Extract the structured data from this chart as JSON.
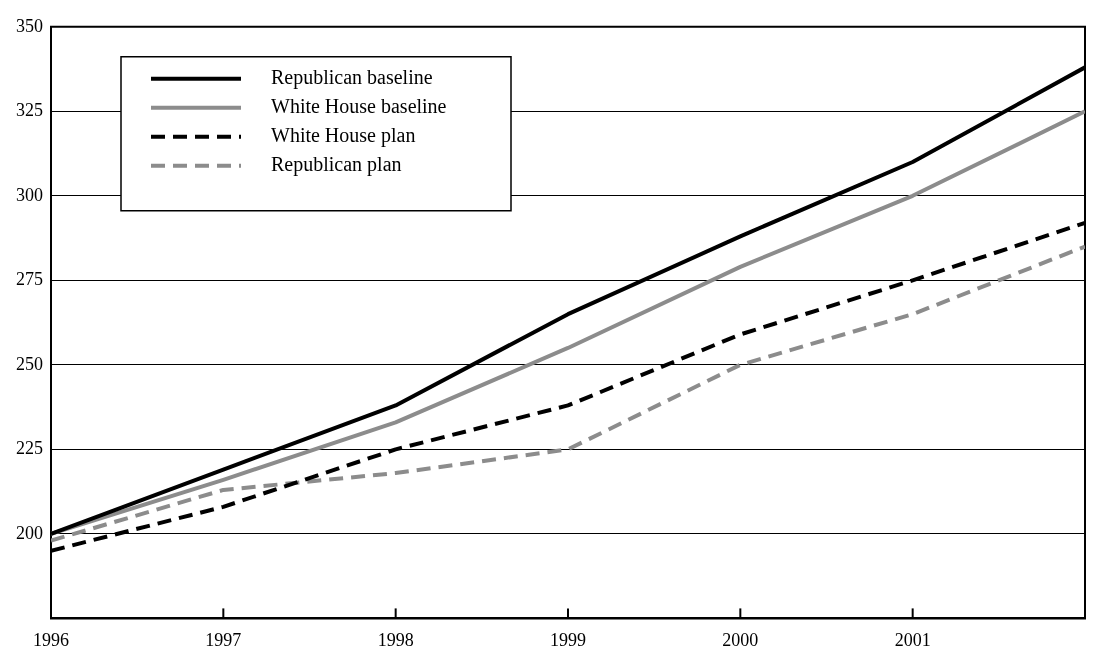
{
  "chart_data": {
    "type": "line",
    "x": [
      1996,
      1997,
      1998,
      1999,
      2000,
      2001,
      2002
    ],
    "series": [
      {
        "name": "Republican baseline",
        "color": "#000000",
        "line_style": "solid",
        "values": [
          200,
          219,
          238,
          265,
          288,
          310,
          338
        ]
      },
      {
        "name": "White House baseline",
        "color": "#8c8c8c",
        "line_style": "solid",
        "values": [
          200,
          216,
          233,
          255,
          279,
          300,
          325
        ]
      },
      {
        "name": "White House plan",
        "color": "#000000",
        "line_style": "dashed",
        "values": [
          195,
          208,
          225,
          238,
          259,
          275,
          292
        ]
      },
      {
        "name": "Republican plan",
        "color": "#8c8c8c",
        "line_style": "dashed",
        "values": [
          198,
          213,
          218,
          225,
          250,
          265,
          285
        ]
      }
    ],
    "xlim": [
      1996,
      2002
    ],
    "xticks": [
      1996,
      1997,
      1998,
      1999,
      2000,
      2001,
      {
        "value": 2002,
        "label": null
      }
    ],
    "ylim": [
      175,
      350
    ],
    "yticks": [
      {
        "value": 175,
        "label": null
      },
      200,
      225,
      250,
      275,
      300,
      325,
      350
    ],
    "grid": "y",
    "legend": "top left",
    "marker": "none"
  }
}
